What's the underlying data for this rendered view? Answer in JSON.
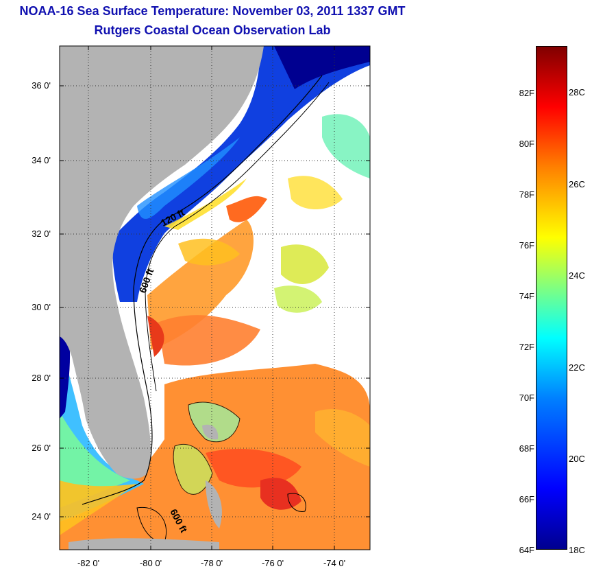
{
  "title": {
    "line1": "NOAA-16 Sea Surface Temperature:  November 03, 2011 1337 GMT",
    "line2": "Rutgers Coastal Ocean Observation Lab"
  },
  "map": {
    "lat_labels": [
      "36 0'",
      "34 0'",
      "32 0'",
      "30 0'",
      "28 0'",
      "26 0'",
      "24 0'"
    ],
    "lon_labels": [
      "-82 0'",
      "-80 0'",
      "-78 0'",
      "-76 0'",
      "-74 0'"
    ],
    "contour_labels": [
      "120 ft",
      "600 ft",
      "600 ft"
    ],
    "land_color": "#b3b3b3",
    "cloud_color": "#ffffff"
  },
  "colorbar": {
    "fahrenheit_labels": [
      "82F",
      "80F",
      "78F",
      "76F",
      "74F",
      "72F",
      "70F",
      "68F",
      "66F",
      "64F"
    ],
    "celsius_labels": [
      "28C",
      "26C",
      "24C",
      "22C",
      "20C",
      "18C"
    ],
    "colors": [
      "#00008f",
      "#0000ff",
      "#0080ff",
      "#00ffff",
      "#80ff80",
      "#ffff00",
      "#ff8000",
      "#ff0000",
      "#800000"
    ]
  }
}
